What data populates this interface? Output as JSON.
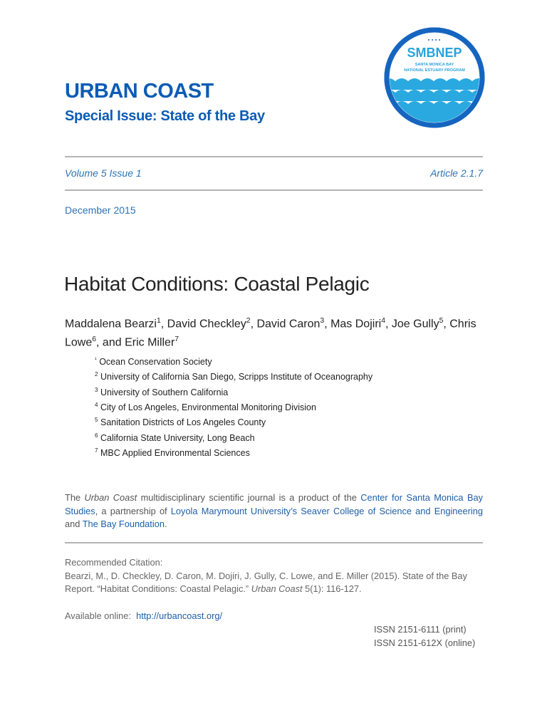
{
  "header": {
    "journal": "URBAN COAST",
    "special_issue": "Special Issue:  State of the Bay",
    "volume_issue": "Volume 5 Issue 1",
    "article": "Article 2.1.7",
    "date": "December 2015"
  },
  "logo": {
    "name": "SMBNEP",
    "line1": "SANTA MONICA BAY",
    "line2": "NATIONAL ESTUARY PROGRAM",
    "ring_color": "#1565c0",
    "wave_color": "#2aa9e0"
  },
  "article": {
    "title": "Habitat Conditions: Coastal Pelagic",
    "authors": [
      {
        "name": "Maddalena Bearzi",
        "sup": "1",
        "sep": ", "
      },
      {
        "name": "David Checkley",
        "sup": "2",
        "sep": ", "
      },
      {
        "name": "David Caron",
        "sup": "3",
        "sep": ", "
      },
      {
        "name": "Mas Dojiri",
        "sup": "4",
        "sep": ", "
      },
      {
        "name": "Joe Gully",
        "sup": "5",
        "sep": ", "
      },
      {
        "name": "Chris Lowe",
        "sup": "6",
        "sep": ", and "
      },
      {
        "name": "Eric Miller",
        "sup": "7",
        "sep": ""
      }
    ],
    "affiliations": [
      {
        "sup": "¹",
        "text": "Ocean Conservation Society"
      },
      {
        "sup": "2",
        "text": "University of California San Diego, Scripps Institute of Oceanography"
      },
      {
        "sup": "3",
        "text": "University of Southern California"
      },
      {
        "sup": "4",
        "text": "City of Los Angeles, Environmental Monitoring Division"
      },
      {
        "sup": "5",
        "text": "Sanitation Districts of Los Angeles County"
      },
      {
        "sup": "6",
        "text": "California State University, Long Beach"
      },
      {
        "sup": "7",
        "text": "MBC Applied Environmental Sciences"
      }
    ]
  },
  "about": {
    "t1": "The ",
    "t2": "Urban Coast",
    "t3": " multidisciplinary scientific journal is a product of the ",
    "link1": "Center for Santa Monica Bay Studies",
    "t4": ", a partnership of ",
    "link2": "Loyola Marymount University’s Seaver College of Science and Engineering",
    "t5": " and ",
    "link3": "The Bay Foundation",
    "t6": "."
  },
  "citation": {
    "label": "Recommended Citation:",
    "text1": "Bearzi, M., D. Checkley, D. Caron, M. Dojiri, J. Gully, C. Lowe, and E. Miller (2015). State of the Bay Report. “Habitat Conditions: Coastal Pelagic.” ",
    "journal": "Urban Coast",
    "text2": " 5(1): 116-127."
  },
  "available": {
    "label": "Available online:  ",
    "url": "http://urbancoast.org/"
  },
  "issn": {
    "print": "ISSN 2151-6111 (print)",
    "online": "ISSN 2151-612X (online)"
  }
}
